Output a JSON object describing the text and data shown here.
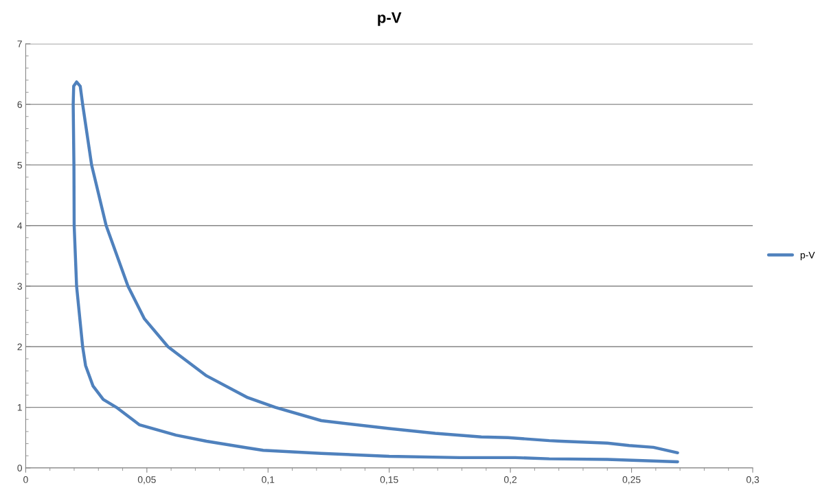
{
  "chart_data": {
    "type": "line",
    "title": "p-V",
    "series": [
      {
        "name": "p-V",
        "color": "#4f81bd",
        "x": [
          0.269,
          0.24,
          0.216,
          0.202,
          0.179,
          0.15,
          0.122,
          0.098,
          0.0916,
          0.0746,
          0.062,
          0.047,
          0.0374,
          0.032,
          0.0278,
          0.0247,
          0.0235,
          0.021,
          0.02,
          0.0199,
          0.0196,
          0.0198,
          0.021,
          0.0225,
          0.0235,
          0.0272,
          0.0332,
          0.0422,
          0.049,
          0.0587,
          0.0746,
          0.0916,
          0.103,
          0.122,
          0.15,
          0.169,
          0.188,
          0.199,
          0.216,
          0.221,
          0.24,
          0.249,
          0.259,
          0.269
        ],
        "values": [
          0.1,
          0.14,
          0.15,
          0.17,
          0.17,
          0.19,
          0.24,
          0.29,
          0.33,
          0.44,
          0.54,
          0.71,
          1.0,
          1.13,
          1.35,
          1.69,
          2.0,
          3.0,
          4.0,
          5.0,
          6.0,
          6.3,
          6.37,
          6.3,
          6.0,
          5.0,
          4.0,
          3.0,
          2.46,
          2.0,
          1.52,
          1.16,
          1.0,
          0.78,
          0.65,
          0.57,
          0.51,
          0.5,
          0.45,
          0.44,
          0.41,
          0.37,
          0.34,
          0.25
        ]
      }
    ],
    "xlim": [
      0,
      0.3
    ],
    "ylim": [
      0,
      7
    ],
    "xticks": [
      0,
      {
        "value": 0.05,
        "label": "0,05"
      },
      {
        "value": 0.1,
        "label": "0,1"
      },
      {
        "value": 0.15,
        "label": "0,15"
      },
      {
        "value": 0.2,
        "label": "0,2"
      },
      {
        "value": 0.25,
        "label": "0,25"
      },
      {
        "value": 0.3,
        "label": "0,3"
      }
    ],
    "yticks": [
      0,
      1,
      2,
      3,
      4,
      5,
      6,
      7
    ],
    "grid": "y",
    "legend": "right",
    "marker": "none",
    "line_style": "solid"
  }
}
